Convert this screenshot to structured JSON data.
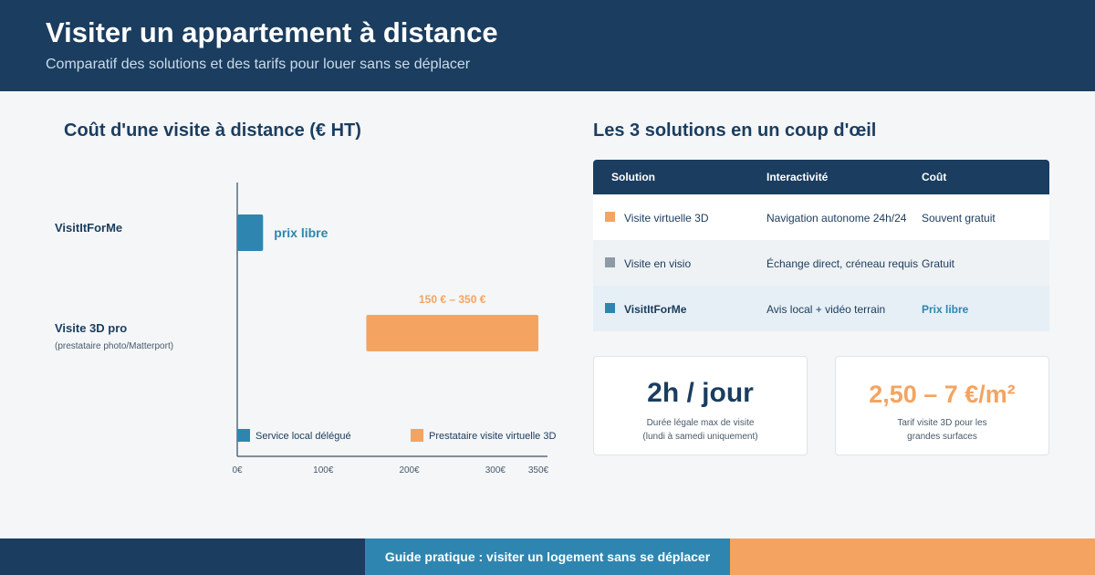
{
  "header": {
    "title": "Visiter un appartement à distance",
    "subtitle": "Comparatif des solutions et des tarifs pour louer sans se déplacer"
  },
  "chart_section": {
    "title": "Coût d'une visite à distance (€ HT)"
  },
  "chart_data": {
    "type": "bar",
    "orientation": "horizontal",
    "title": "Coût d'une visite à distance (€ HT)",
    "xlim": [
      0,
      350
    ],
    "ticks": [
      {
        "value": 0,
        "label": "0€"
      },
      {
        "value": 100,
        "label": "100€"
      },
      {
        "value": 200,
        "label": "200€"
      },
      {
        "value": 300,
        "label": "300€"
      },
      {
        "value": 350,
        "label": "350€"
      }
    ],
    "categories": [
      {
        "label": "VisitItForMe",
        "sublabel": ""
      },
      {
        "label": "Visite 3D pro",
        "sublabel": "(prestataire photo/Matterport)"
      }
    ],
    "bars": [
      {
        "category": "VisitItForMe",
        "series": "Service local délégué",
        "from": 0,
        "to": 30,
        "label": "prix libre",
        "color": "#2e86b0"
      },
      {
        "category": "Visite 3D pro",
        "series": "Prestataire visite virtuelle 3D",
        "from": 150,
        "to": 350,
        "label": "150 € – 350 €",
        "color": "#f4a460"
      }
    ],
    "legend": {
      "placement": "bottom",
      "entries": [
        {
          "name": "Service local délégué",
          "color": "#2e86b0"
        },
        {
          "name": "Prestataire visite virtuelle 3D",
          "color": "#f4a460"
        }
      ]
    },
    "grid": false
  },
  "table": {
    "title": "Les 3 solutions en un coup d'œil",
    "headers": [
      "Solution",
      "Interactivité",
      "Coût"
    ],
    "rows": [
      {
        "solution": "Visite virtuelle 3D",
        "interactivite": "Navigation autonome 24h/24",
        "cout": "Souvent gratuit",
        "color": "#f4a460"
      },
      {
        "solution": "Visite en visio",
        "interactivite": "Échange direct, créneau requis",
        "cout": "Gratuit",
        "color": "#8e9aa6"
      },
      {
        "solution": "VisitItForMe",
        "interactivite": "Avis local + vidéo terrain",
        "cout": "Prix libre",
        "color": "#2e86b0"
      }
    ]
  },
  "cards": [
    {
      "value": "2h / jour",
      "caption_line1": "Durée légale max de visite",
      "caption_line2": "(lundi à samedi uniquement)"
    },
    {
      "value": "2,50 – 7 €/m²",
      "caption_line1": "Tarif visite 3D pour les",
      "caption_line2": "grandes surfaces"
    }
  ],
  "footer": {
    "text": "Guide pratique : visiter un logement sans se déplacer"
  },
  "colors": {
    "navy": "#1b3d5f",
    "blue": "#2e86b0",
    "orange": "#f4a460",
    "gray": "#8e9aa6"
  }
}
